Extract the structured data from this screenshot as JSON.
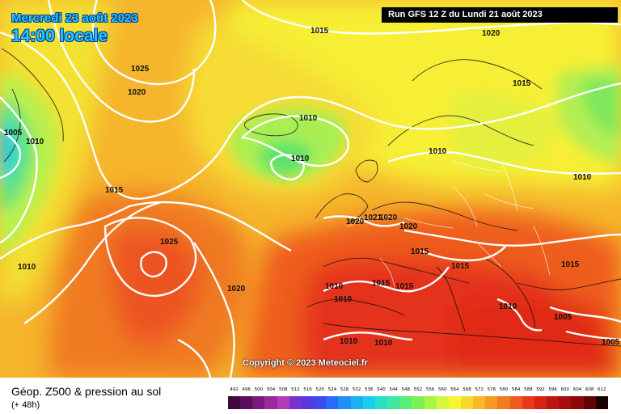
{
  "header": {
    "date": "Mercredi 23 août 2023",
    "time": "14:00 locale",
    "run": "Run GFS 12 Z du Lundi 21 août 2023"
  },
  "copyright": "Copyright © 2023 Meteociel.fr",
  "footer": {
    "title": "Géop. Z500 & pression au sol",
    "subtitle": "(+ 48h)"
  },
  "isobar_labels": [
    {
      "text": "1015"
    },
    {
      "text": "1020"
    },
    {
      "text": "1025"
    },
    {
      "text": "1020"
    },
    {
      "text": "1005"
    },
    {
      "text": "1010"
    },
    {
      "text": "1010"
    },
    {
      "text": "1010"
    },
    {
      "text": "1015"
    },
    {
      "text": "1010"
    },
    {
      "text": "1015"
    },
    {
      "text": "1010"
    },
    {
      "text": "1025"
    },
    {
      "text": "1020"
    },
    {
      "text": "1020"
    },
    {
      "text": "1021"
    },
    {
      "text": "1020"
    },
    {
      "text": "1020"
    },
    {
      "text": "1015"
    },
    {
      "text": "1015"
    },
    {
      "text": "1015"
    },
    {
      "text": "1010"
    },
    {
      "text": "1015"
    },
    {
      "text": "1015"
    },
    {
      "text": "1010"
    },
    {
      "text": "1010"
    },
    {
      "text": "1005"
    },
    {
      "text": "1010"
    },
    {
      "text": "1010"
    },
    {
      "text": "1005"
    },
    {
      "text": "1010"
    }
  ],
  "scale": {
    "labels": [
      "492",
      "496",
      "500",
      "504",
      "508",
      "512",
      "516",
      "520",
      "524",
      "528",
      "532",
      "536",
      "540",
      "544",
      "548",
      "552",
      "556",
      "560",
      "564",
      "568",
      "572",
      "576",
      "580",
      "584",
      "588",
      "592",
      "596",
      "600",
      "604",
      "608",
      "612"
    ],
    "colors": [
      "#3c0a3c",
      "#5a0f5a",
      "#7a1a7a",
      "#9b2a9b",
      "#b73bb7",
      "#7b2fd0",
      "#5a38e0",
      "#3b4bf0",
      "#2a6cf5",
      "#1f90f8",
      "#1bb2f5",
      "#18d0ee",
      "#2ae0c8",
      "#3fe8a0",
      "#55ee78",
      "#7af255",
      "#a8f545",
      "#d6f83a",
      "#f7f532",
      "#f8d82d",
      "#f8b828",
      "#f59a24",
      "#f27a20",
      "#ef5a1c",
      "#e83a18",
      "#d82214",
      "#c01410",
      "#a80c0c",
      "#8a0808",
      "#600404",
      "#1a0000"
    ]
  }
}
